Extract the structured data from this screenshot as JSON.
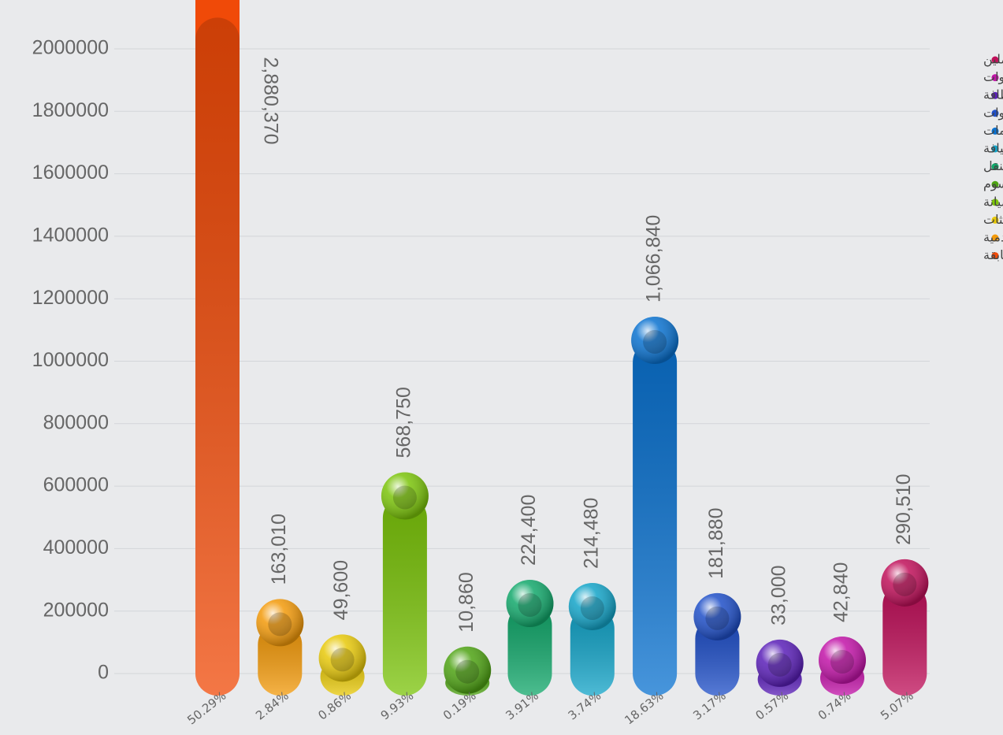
{
  "chart_data": {
    "type": "bar",
    "categories": [
      "مصروفات عن سنوات سابقة",
      "مصروفات خدمية",
      "التدريب والبعثات",
      "تجهيزات وصيانة",
      "التأمينات والضرائب والرسوم",
      "إيجار المباني ومصروفات النقل",
      "إعلان وعلاقات عامة وضيافة",
      "نفقات سفر ومهمات",
      "مطبوعات وقرطاسية وأدوات",
      "بريد ومياه ومصروفات نظافة",
      "وقود وزيوت وقطع غيار وأدوات",
      "أتعاب ومكافآت لغير العاملين"
    ],
    "values": [
      2880370,
      163010,
      49600,
      568750,
      10860,
      224400,
      214480,
      1066840,
      181880,
      33000,
      42840,
      290510
    ],
    "value_labels": [
      "2,880,370",
      "163,010",
      "49,600",
      "568,750",
      "10,860",
      "224,400",
      "214,480",
      "1,066,840",
      "181,880",
      "33,000",
      "42,840",
      "290,510"
    ],
    "share_labels": [
      "50.29%",
      "2.84%",
      "0.86%",
      "9.93%",
      "0.19%",
      "3.91%",
      "3.74%",
      "18.63%",
      "3.17%",
      "0.57%",
      "0.74%",
      "5.07%"
    ],
    "colors": [
      "#f04a08",
      "#f39a0a",
      "#e8c90a",
      "#7bc40a",
      "#4ea313",
      "#12a86b",
      "#13a4c8",
      "#0a72d0",
      "#1f4fc8",
      "#5a1fb8",
      "#c214a8",
      "#c0105a"
    ],
    "ylim": [
      0,
      2100000
    ],
    "yticks": [
      0,
      200000,
      400000,
      600000,
      800000,
      1000000,
      1200000,
      1400000,
      1600000,
      1800000,
      2000000
    ],
    "grid": true
  }
}
